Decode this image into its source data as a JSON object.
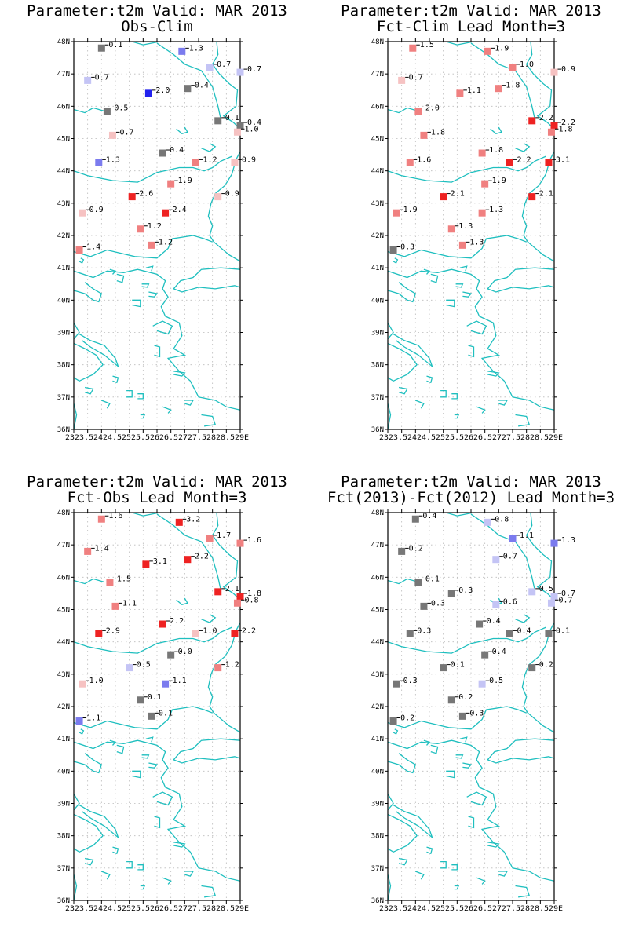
{
  "panels": [
    {
      "title": "Parameter:t2m Valid: MAR 2013",
      "subtitle": "Obs-Clim",
      "stations": [
        {
          "lon": 24.0,
          "lat": 47.8,
          "v": "0.1",
          "c": "#777777"
        },
        {
          "lon": 26.9,
          "lat": 47.7,
          "v": "1.3",
          "c": "#7b7bee"
        },
        {
          "lon": 27.9,
          "lat": 47.2,
          "v": "0.7",
          "c": "#c4c4f5"
        },
        {
          "lon": 29.0,
          "lat": 47.05,
          "v": "0.7",
          "c": "#c4c4f5"
        },
        {
          "lon": 23.5,
          "lat": 46.8,
          "v": "0.7",
          "c": "#c4c4f5"
        },
        {
          "lon": 25.7,
          "lat": 46.4,
          "v": "2.0",
          "c": "#2222ee"
        },
        {
          "lon": 27.1,
          "lat": 46.55,
          "v": "0.4",
          "c": "#777777"
        },
        {
          "lon": 24.2,
          "lat": 45.85,
          "v": "0.5",
          "c": "#777777"
        },
        {
          "lon": 28.2,
          "lat": 45.55,
          "v": "0.1",
          "c": "#777777"
        },
        {
          "lon": 29.0,
          "lat": 45.4,
          "v": "0.4",
          "c": "#777777"
        },
        {
          "lon": 28.9,
          "lat": 45.2,
          "v": "1.0",
          "c": "#f6c2c2"
        },
        {
          "lon": 24.4,
          "lat": 45.1,
          "v": "0.7",
          "c": "#f6c2c2"
        },
        {
          "lon": 26.2,
          "lat": 44.55,
          "v": "0.4",
          "c": "#777777"
        },
        {
          "lon": 27.4,
          "lat": 44.25,
          "v": "1.2",
          "c": "#f08080"
        },
        {
          "lon": 28.8,
          "lat": 44.25,
          "v": "0.9",
          "c": "#f6c2c2"
        },
        {
          "lon": 23.9,
          "lat": 44.25,
          "v": "1.3",
          "c": "#7b7bee"
        },
        {
          "lon": 26.5,
          "lat": 43.6,
          "v": "1.9",
          "c": "#f08080"
        },
        {
          "lon": 28.2,
          "lat": 43.2,
          "v": "0.9",
          "c": "#f6c2c2"
        },
        {
          "lon": 25.1,
          "lat": 43.2,
          "v": "2.6",
          "c": "#ee2222"
        },
        {
          "lon": 26.3,
          "lat": 42.7,
          "v": "2.4",
          "c": "#ee2222"
        },
        {
          "lon": 23.3,
          "lat": 42.7,
          "v": "0.9",
          "c": "#f6c2c2"
        },
        {
          "lon": 25.4,
          "lat": 42.2,
          "v": "1.2",
          "c": "#f08080"
        },
        {
          "lon": 25.8,
          "lat": 41.7,
          "v": "1.2",
          "c": "#f08080"
        },
        {
          "lon": 23.2,
          "lat": 41.55,
          "v": "1.4",
          "c": "#f08080"
        }
      ]
    },
    {
      "title": "Parameter:t2m Valid: MAR 2013",
      "subtitle": "Fct-Clim Lead Month=3",
      "stations": [
        {
          "lon": 23.9,
          "lat": 47.8,
          "v": "1.5",
          "c": "#f08080"
        },
        {
          "lon": 26.6,
          "lat": 47.7,
          "v": "1.9",
          "c": "#f08080"
        },
        {
          "lon": 27.5,
          "lat": 47.2,
          "v": "1.0",
          "c": "#f08080"
        },
        {
          "lon": 29.0,
          "lat": 47.05,
          "v": "0.9",
          "c": "#f6c2c2"
        },
        {
          "lon": 23.5,
          "lat": 46.8,
          "v": "0.7",
          "c": "#f6c2c2"
        },
        {
          "lon": 25.6,
          "lat": 46.4,
          "v": "1.1",
          "c": "#f08080"
        },
        {
          "lon": 27.0,
          "lat": 46.55,
          "v": "1.8",
          "c": "#f08080"
        },
        {
          "lon": 24.1,
          "lat": 45.85,
          "v": "2.0",
          "c": "#f08080"
        },
        {
          "lon": 28.2,
          "lat": 45.55,
          "v": "2.2",
          "c": "#ee2222"
        },
        {
          "lon": 29.0,
          "lat": 45.4,
          "v": "2.2",
          "c": "#ee2222"
        },
        {
          "lon": 28.9,
          "lat": 45.2,
          "v": "1.8",
          "c": "#f08080"
        },
        {
          "lon": 24.3,
          "lat": 45.1,
          "v": "1.8",
          "c": "#f08080"
        },
        {
          "lon": 26.4,
          "lat": 44.55,
          "v": "1.8",
          "c": "#f08080"
        },
        {
          "lon": 27.4,
          "lat": 44.25,
          "v": "2.2",
          "c": "#ee2222"
        },
        {
          "lon": 28.8,
          "lat": 44.25,
          "v": "3.1",
          "c": "#ee2222"
        },
        {
          "lon": 23.8,
          "lat": 44.25,
          "v": "1.6",
          "c": "#f08080"
        },
        {
          "lon": 26.5,
          "lat": 43.6,
          "v": "1.9",
          "c": "#f08080"
        },
        {
          "lon": 28.2,
          "lat": 43.2,
          "v": "2.1",
          "c": "#ee2222"
        },
        {
          "lon": 25.0,
          "lat": 43.2,
          "v": "2.1",
          "c": "#ee2222"
        },
        {
          "lon": 26.4,
          "lat": 42.7,
          "v": "1.3",
          "c": "#f08080"
        },
        {
          "lon": 23.3,
          "lat": 42.7,
          "v": "1.9",
          "c": "#f08080"
        },
        {
          "lon": 25.3,
          "lat": 42.2,
          "v": "1.3",
          "c": "#f08080"
        },
        {
          "lon": 25.7,
          "lat": 41.7,
          "v": "1.3",
          "c": "#f08080"
        },
        {
          "lon": 23.2,
          "lat": 41.55,
          "v": "0.3",
          "c": "#777777"
        }
      ]
    },
    {
      "title": "Parameter:t2m Valid: MAR 2013",
      "subtitle": "Fct-Obs Lead Month=3",
      "stations": [
        {
          "lon": 24.0,
          "lat": 47.8,
          "v": "1.6",
          "c": "#f08080"
        },
        {
          "lon": 26.8,
          "lat": 47.7,
          "v": "3.2",
          "c": "#ee2222"
        },
        {
          "lon": 27.9,
          "lat": 47.2,
          "v": "1.7",
          "c": "#f08080"
        },
        {
          "lon": 29.0,
          "lat": 47.05,
          "v": "1.6",
          "c": "#f08080"
        },
        {
          "lon": 23.5,
          "lat": 46.8,
          "v": "1.4",
          "c": "#f08080"
        },
        {
          "lon": 25.6,
          "lat": 46.4,
          "v": "3.1",
          "c": "#ee2222"
        },
        {
          "lon": 27.1,
          "lat": 46.55,
          "v": "2.2",
          "c": "#ee2222"
        },
        {
          "lon": 24.3,
          "lat": 45.85,
          "v": "1.5",
          "c": "#f08080"
        },
        {
          "lon": 28.2,
          "lat": 45.55,
          "v": "2.1",
          "c": "#ee2222"
        },
        {
          "lon": 29.0,
          "lat": 45.4,
          "v": "1.8",
          "c": "#ee2222"
        },
        {
          "lon": 28.9,
          "lat": 45.2,
          "v": "0.8",
          "c": "#f08080"
        },
        {
          "lon": 24.5,
          "lat": 45.1,
          "v": "1.1",
          "c": "#f08080"
        },
        {
          "lon": 26.2,
          "lat": 44.55,
          "v": "2.2",
          "c": "#ee2222"
        },
        {
          "lon": 27.4,
          "lat": 44.25,
          "v": "1.0",
          "c": "#f6c2c2"
        },
        {
          "lon": 28.8,
          "lat": 44.25,
          "v": "2.2",
          "c": "#ee2222"
        },
        {
          "lon": 23.9,
          "lat": 44.25,
          "v": "2.9",
          "c": "#ee2222"
        },
        {
          "lon": 26.5,
          "lat": 43.6,
          "v": "0.0",
          "c": "#777777"
        },
        {
          "lon": 28.2,
          "lat": 43.2,
          "v": "1.2",
          "c": "#f08080"
        },
        {
          "lon": 25.0,
          "lat": 43.2,
          "v": "0.5",
          "c": "#c4c4f5"
        },
        {
          "lon": 26.3,
          "lat": 42.7,
          "v": "1.1",
          "c": "#7b7bee"
        },
        {
          "lon": 23.3,
          "lat": 42.7,
          "v": "1.0",
          "c": "#f6c2c2"
        },
        {
          "lon": 25.4,
          "lat": 42.2,
          "v": "0.1",
          "c": "#777777"
        },
        {
          "lon": 25.8,
          "lat": 41.7,
          "v": "0.1",
          "c": "#777777"
        },
        {
          "lon": 23.2,
          "lat": 41.55,
          "v": "1.1",
          "c": "#7b7bee"
        }
      ]
    },
    {
      "title": "Parameter:t2m Valid: MAR 2013",
      "subtitle": "Fct(2013)-Fct(2012) Lead Month=3",
      "stations": [
        {
          "lon": 24.0,
          "lat": 47.8,
          "v": "0.4",
          "c": "#777777"
        },
        {
          "lon": 26.6,
          "lat": 47.7,
          "v": "0.8",
          "c": "#c4c4f5"
        },
        {
          "lon": 27.5,
          "lat": 47.2,
          "v": "1.1",
          "c": "#7b7bee"
        },
        {
          "lon": 29.0,
          "lat": 47.05,
          "v": "1.3",
          "c": "#7b7bee"
        },
        {
          "lon": 23.5,
          "lat": 46.8,
          "v": "0.2",
          "c": "#777777"
        },
        {
          "lon": 25.3,
          "lat": 45.5,
          "v": "0.3",
          "c": "#777777"
        },
        {
          "lon": 26.9,
          "lat": 46.55,
          "v": "0.7",
          "c": "#c4c4f5"
        },
        {
          "lon": 24.1,
          "lat": 45.85,
          "v": "0.1",
          "c": "#777777"
        },
        {
          "lon": 28.2,
          "lat": 45.55,
          "v": "0.5",
          "c": "#c4c4f5"
        },
        {
          "lon": 29.0,
          "lat": 45.4,
          "v": "0.7",
          "c": "#c4c4f5"
        },
        {
          "lon": 28.9,
          "lat": 45.2,
          "v": "0.7",
          "c": "#c4c4f5"
        },
        {
          "lon": 24.3,
          "lat": 45.1,
          "v": "0.3",
          "c": "#777777"
        },
        {
          "lon": 26.3,
          "lat": 44.55,
          "v": "0.4",
          "c": "#777777"
        },
        {
          "lon": 26.9,
          "lat": 45.15,
          "v": "0.6",
          "c": "#c4c4f5"
        },
        {
          "lon": 27.4,
          "lat": 44.25,
          "v": "0.4",
          "c": "#777777"
        },
        {
          "lon": 28.8,
          "lat": 44.25,
          "v": "0.1",
          "c": "#777777"
        },
        {
          "lon": 23.8,
          "lat": 44.25,
          "v": "0.3",
          "c": "#777777"
        },
        {
          "lon": 26.5,
          "lat": 43.6,
          "v": "0.4",
          "c": "#777777"
        },
        {
          "lon": 28.2,
          "lat": 43.2,
          "v": "0.2",
          "c": "#777777"
        },
        {
          "lon": 25.0,
          "lat": 43.2,
          "v": "0.1",
          "c": "#777777"
        },
        {
          "lon": 26.4,
          "lat": 42.7,
          "v": "0.5",
          "c": "#c4c4f5"
        },
        {
          "lon": 23.3,
          "lat": 42.7,
          "v": "0.3",
          "c": "#777777"
        },
        {
          "lon": 25.3,
          "lat": 42.2,
          "v": "0.2",
          "c": "#777777"
        },
        {
          "lon": 25.7,
          "lat": 41.7,
          "v": "0.3",
          "c": "#777777"
        },
        {
          "lon": 23.2,
          "lat": 41.55,
          "v": "0.2",
          "c": "#777777"
        }
      ]
    }
  ],
  "axes": {
    "lon_min": 23,
    "lon_max": 29,
    "lat_min": 36,
    "lat_max": 48,
    "lon_ticks": [
      {
        "v": 23,
        "label": "23E"
      },
      {
        "v": 23.5,
        "label": "23.5E"
      },
      {
        "v": 24,
        "label": "24E"
      },
      {
        "v": 24.5,
        "label": "24.5E"
      },
      {
        "v": 25,
        "label": "25E"
      },
      {
        "v": 25.5,
        "label": "25.5E"
      },
      {
        "v": 26,
        "label": "26E"
      },
      {
        "v": 26.5,
        "label": "26.5E"
      },
      {
        "v": 27,
        "label": "27E"
      },
      {
        "v": 27.5,
        "label": "27.5E"
      },
      {
        "v": 28,
        "label": "28E"
      },
      {
        "v": 28.5,
        "label": "28.5E"
      },
      {
        "v": 29,
        "label": "29E"
      }
    ],
    "lat_ticks": [
      {
        "v": 36,
        "label": "36N"
      },
      {
        "v": 37,
        "label": "37N"
      },
      {
        "v": 38,
        "label": "38N"
      },
      {
        "v": 39,
        "label": "39N"
      },
      {
        "v": 40,
        "label": "40N"
      },
      {
        "v": 41,
        "label": "41N"
      },
      {
        "v": 42,
        "label": "42N"
      },
      {
        "v": 43,
        "label": "43N"
      },
      {
        "v": 44,
        "label": "44N"
      },
      {
        "v": 45,
        "label": "45N"
      },
      {
        "v": 46,
        "label": "46N"
      },
      {
        "v": 47,
        "label": "47N"
      },
      {
        "v": 48,
        "label": "48N"
      }
    ]
  },
  "colors": {
    "coast": "#1fbfbf",
    "grid": "#bbbbbb",
    "frame": "#000000"
  }
}
